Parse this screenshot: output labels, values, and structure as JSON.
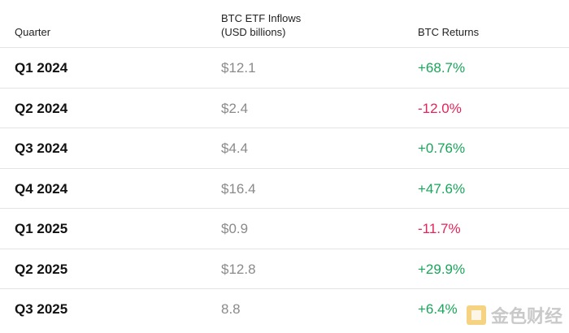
{
  "table": {
    "columns": [
      {
        "lines": [
          "Quarter"
        ]
      },
      {
        "lines": [
          "BTC ETF Inflows",
          "(USD billions)"
        ]
      },
      {
        "lines": [
          "BTC Returns"
        ]
      }
    ],
    "rows": [
      [
        "Q1 2024",
        "$12.1",
        "+68.7%"
      ],
      [
        "Q2 2024",
        "$2.4",
        "-12.0%"
      ],
      [
        "Q3 2024",
        "$4.4",
        "+0.76%"
      ],
      [
        "Q4 2024",
        "$16.4",
        "+47.6%"
      ],
      [
        "Q1 2025",
        "$0.9",
        "-11.7%"
      ],
      [
        "Q2 2025",
        "$12.8",
        "+29.9%"
      ],
      [
        "Q3 2025",
        "8.8",
        "+6.4%"
      ]
    ]
  },
  "watermark": "金色财经"
}
